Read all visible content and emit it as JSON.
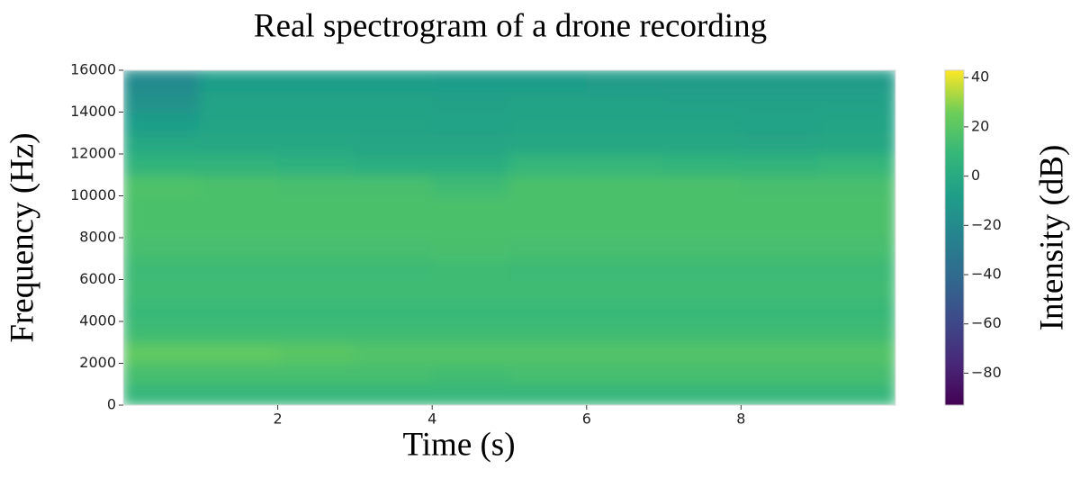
{
  "chart_data": {
    "type": "heatmap",
    "title": "Real spectrogram of a drone recording",
    "x_label": "Time (s)",
    "y_label": "Frequency (Hz)",
    "x_bins": [
      0,
      1,
      2,
      3,
      4,
      5,
      6,
      7,
      8,
      9,
      10
    ],
    "y_bins": [
      0,
      1000,
      2000,
      3000,
      4000,
      5000,
      6000,
      7000,
      8000,
      9000,
      10000,
      11000,
      12000,
      13000,
      14000,
      15000,
      16000
    ],
    "z": [
      [
        8,
        8,
        8,
        8,
        8,
        8,
        8,
        8,
        8,
        8
      ],
      [
        14,
        14,
        14,
        14,
        13,
        14,
        14,
        14,
        14,
        14
      ],
      [
        22,
        22,
        20,
        18,
        18,
        18,
        18,
        18,
        18,
        18
      ],
      [
        12,
        12,
        12,
        12,
        12,
        12,
        12,
        12,
        12,
        12
      ],
      [
        10,
        10,
        10,
        10,
        10,
        10,
        10,
        10,
        10,
        10
      ],
      [
        12,
        12,
        12,
        12,
        12,
        12,
        12,
        12,
        12,
        12
      ],
      [
        11,
        11,
        11,
        11,
        12,
        11,
        11,
        11,
        11,
        11
      ],
      [
        14,
        14,
        14,
        14,
        15,
        14,
        14,
        14,
        14,
        14
      ],
      [
        16,
        16,
        16,
        16,
        16,
        16,
        16,
        16,
        16,
        16
      ],
      [
        16,
        16,
        16,
        16,
        16,
        16,
        16,
        16,
        16,
        16
      ],
      [
        17,
        16,
        15,
        15,
        12,
        16,
        16,
        16,
        15,
        15
      ],
      [
        6,
        6,
        4,
        2,
        2,
        8,
        8,
        7,
        6,
        8
      ],
      [
        -1,
        -2,
        -2,
        -3,
        -3,
        -2,
        -2,
        -2,
        -3,
        -2
      ],
      [
        -8,
        -4,
        -4,
        -4,
        -5,
        -4,
        -4,
        -4,
        -5,
        -4
      ],
      [
        -15,
        -5,
        -5,
        -5,
        -6,
        -5,
        -5,
        -6,
        -6,
        -6
      ],
      [
        -20,
        -8,
        -8,
        -8,
        -9,
        -9,
        -10,
        -10,
        -10,
        -10
      ]
    ],
    "xlim": [
      0,
      10
    ],
    "xticks": [
      2,
      4,
      6,
      8
    ],
    "ylim": [
      0,
      16000
    ],
    "yticks": [
      0,
      2000,
      4000,
      6000,
      8000,
      10000,
      12000,
      14000,
      16000
    ],
    "colorbar": {
      "label": "Intensity (dB)",
      "colormap": "viridis",
      "lim": [
        -93,
        43
      ],
      "ticks": [
        40,
        20,
        0,
        {
          "value": -20,
          "label": "−20"
        },
        {
          "value": -40,
          "label": "−40"
        },
        {
          "value": -60,
          "label": "−60"
        },
        {
          "value": -80,
          "label": "−80"
        }
      ]
    }
  }
}
